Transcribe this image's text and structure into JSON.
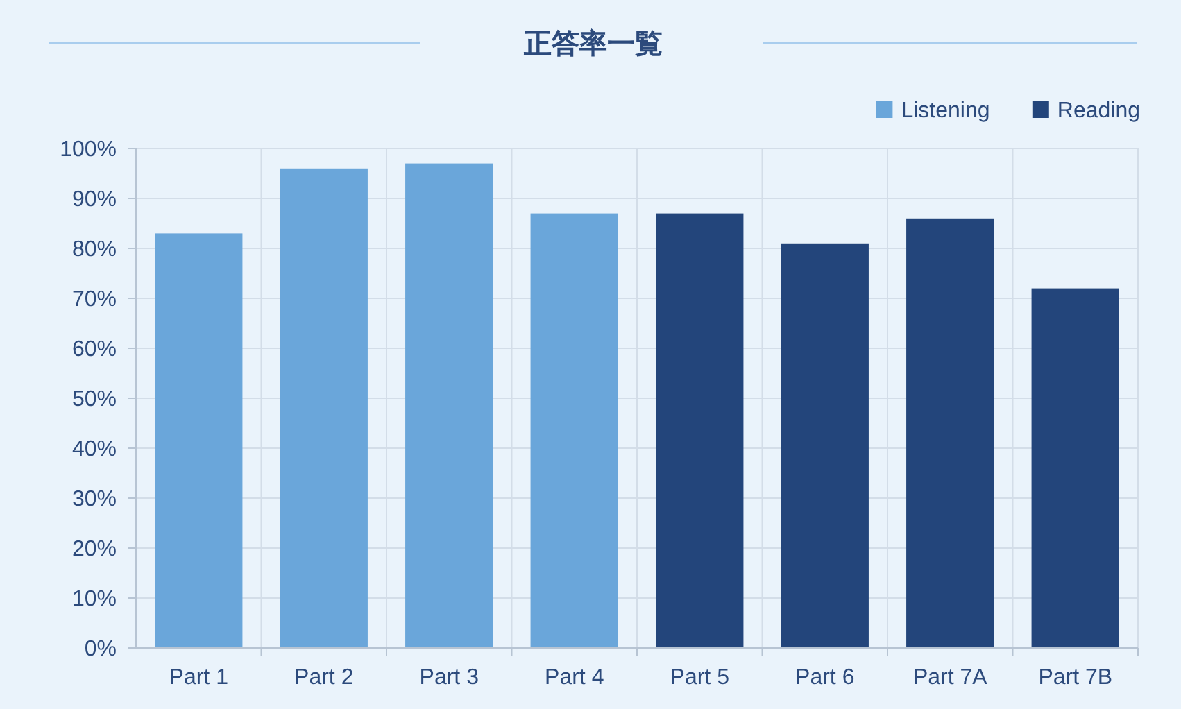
{
  "chart_data": {
    "type": "bar",
    "title": "正答率一覧",
    "categories": [
      "Part 1",
      "Part 2",
      "Part 3",
      "Part 4",
      "Part 5",
      "Part 6",
      "Part 7A",
      "Part 7B"
    ],
    "series": [
      {
        "name": "Listening",
        "color": "#6aa6da",
        "values": [
          83,
          96,
          97,
          87,
          null,
          null,
          null,
          null
        ]
      },
      {
        "name": "Reading",
        "color": "#23457b",
        "values": [
          null,
          null,
          null,
          null,
          87,
          81,
          86,
          72
        ]
      }
    ],
    "stacked": true,
    "ylim": [
      0,
      100
    ],
    "yticks": [
      {
        "value": 0,
        "label": "0%"
      },
      {
        "value": 10,
        "label": "10%"
      },
      {
        "value": 20,
        "label": "20%"
      },
      {
        "value": 30,
        "label": "30%"
      },
      {
        "value": 40,
        "label": "40%"
      },
      {
        "value": 50,
        "label": "50%"
      },
      {
        "value": 60,
        "label": "60%"
      },
      {
        "value": 70,
        "label": "70%"
      },
      {
        "value": 80,
        "label": "80%"
      },
      {
        "value": 90,
        "label": "90%"
      },
      {
        "value": 100,
        "label": "100%"
      }
    ],
    "grid": true,
    "legend": "top right"
  }
}
